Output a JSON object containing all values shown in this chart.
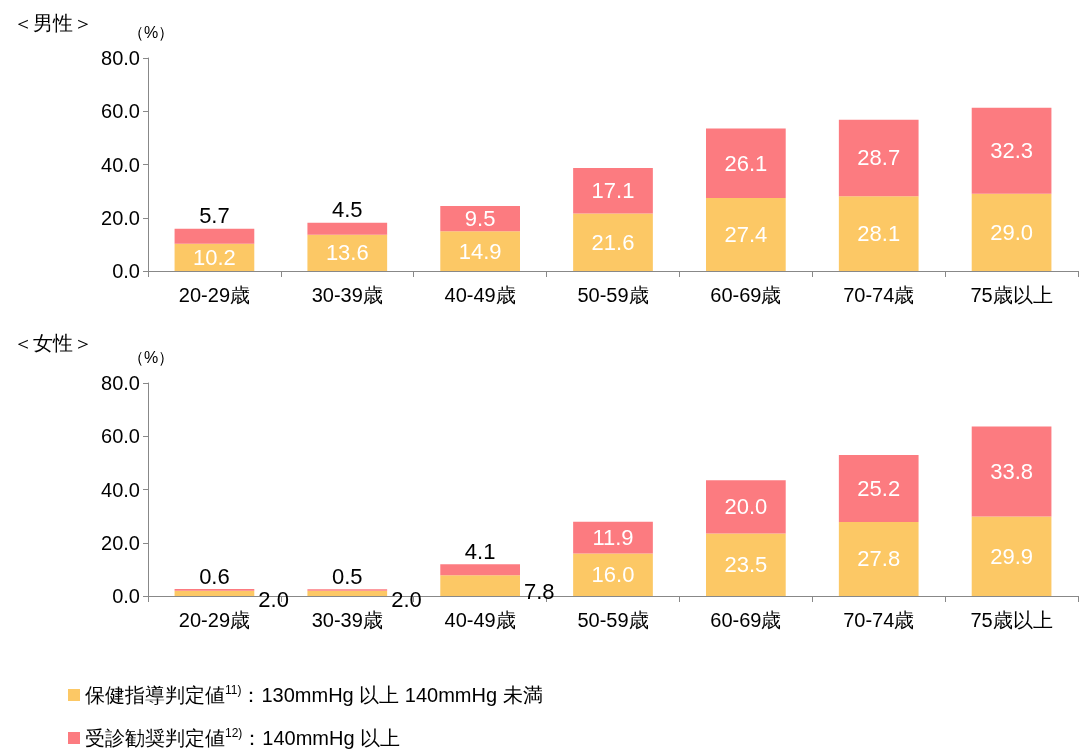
{
  "chart_data": [
    {
      "type": "bar",
      "stacked": true,
      "title": "＜男性＞",
      "ylabel": "（%）",
      "categories": [
        "20-29歳",
        "30-39歳",
        "40-49歳",
        "50-59歳",
        "60-69歳",
        "70-74歳",
        "75歳以上"
      ],
      "ylim": [
        0,
        80
      ],
      "yticks": [
        {
          "value": 0,
          "label": "0.0"
        },
        {
          "value": 20,
          "label": "20.0"
        },
        {
          "value": 40,
          "label": "40.0"
        },
        {
          "value": 60,
          "label": "60.0"
        },
        {
          "value": 80,
          "label": "80.0"
        }
      ],
      "grid": false,
      "legend": false,
      "series": [
        {
          "color": "#fcc865",
          "values": [
            10.2,
            13.6,
            14.9,
            21.6,
            27.4,
            28.1,
            29.0
          ],
          "value_labels": [
            "10.2",
            "13.6",
            "14.9",
            "21.6",
            "27.4",
            "28.1",
            "29.0"
          ]
        },
        {
          "color": "#fc7b80",
          "values": [
            5.7,
            4.5,
            9.5,
            17.1,
            26.1,
            28.7,
            32.3
          ],
          "value_labels": [
            "5.7",
            "4.5",
            "9.5",
            "17.1",
            "26.1",
            "28.7",
            "32.3"
          ]
        }
      ]
    },
    {
      "type": "bar",
      "stacked": true,
      "title": "＜女性＞",
      "ylabel": "（%）",
      "categories": [
        "20-29歳",
        "30-39歳",
        "40-49歳",
        "50-59歳",
        "60-69歳",
        "70-74歳",
        "75歳以上"
      ],
      "ylim": [
        0,
        80
      ],
      "yticks": [
        {
          "value": 0,
          "label": "0.0"
        },
        {
          "value": 20,
          "label": "20.0"
        },
        {
          "value": 40,
          "label": "40.0"
        },
        {
          "value": 60,
          "label": "60.0"
        },
        {
          "value": 80,
          "label": "80.0"
        }
      ],
      "grid": false,
      "legend": "bottom",
      "series": [
        {
          "name": "保健指導判定値$^{11)}$：130mmHg 以上 140mmHg 未満",
          "color": "#fcc865",
          "values": [
            2.0,
            2.0,
            7.8,
            16.0,
            23.5,
            27.8,
            29.9
          ],
          "value_labels": [
            "2.0",
            "2.0",
            "7.8",
            "16.0",
            "23.5",
            "27.8",
            "29.9"
          ]
        },
        {
          "name": "受診勧奨判定値$^{12)}$：140mmHg 以上",
          "color": "#fc7b80",
          "values": [
            0.6,
            0.5,
            4.1,
            11.9,
            20.0,
            25.2,
            33.8
          ],
          "value_labels": [
            "0.6",
            "0.5",
            "4.1",
            "11.9",
            "20.0",
            "25.2",
            "33.8"
          ]
        }
      ]
    }
  ]
}
